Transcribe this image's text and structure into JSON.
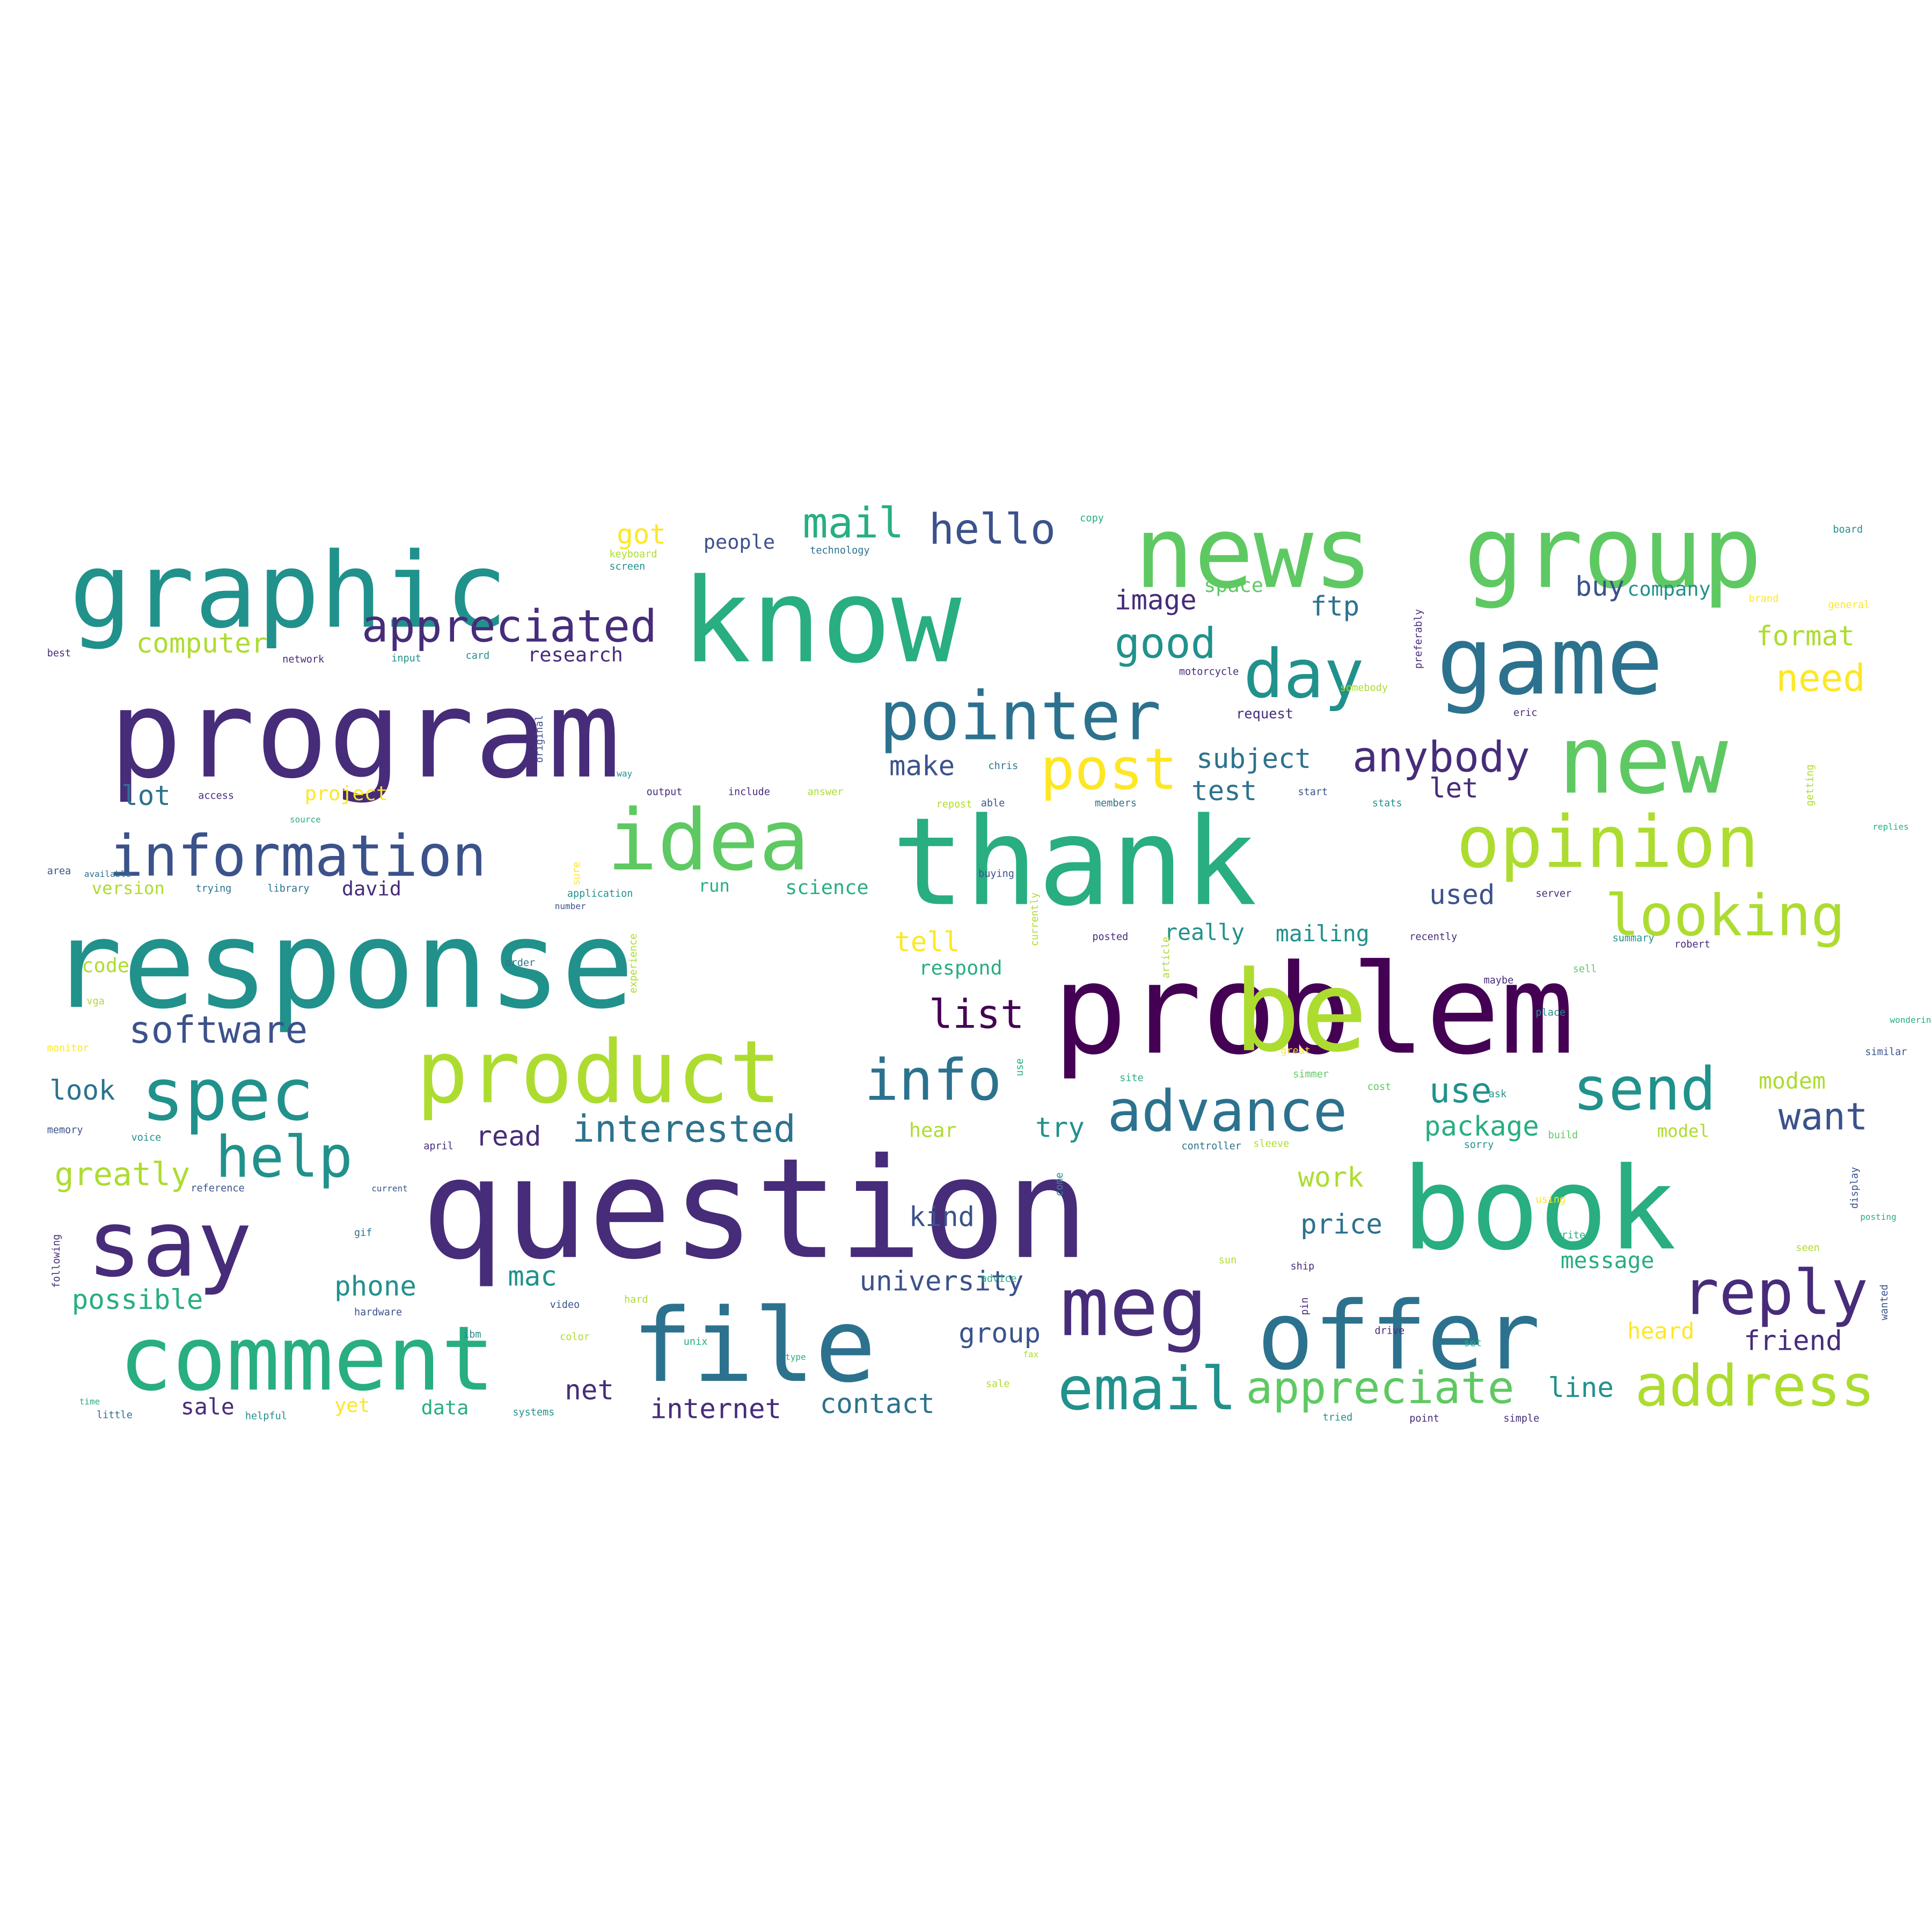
{
  "palette": {
    "dark_purple": "#440154",
    "indigo": "#472c7a",
    "blue": "#3b528b",
    "steel": "#2c728e",
    "teal": "#21918c",
    "green": "#28ae80",
    "light_green": "#5ec962",
    "lime": "#addc30",
    "yellow": "#fde725"
  },
  "words": [
    {
      "text": "question",
      "color": "indigo"
    },
    {
      "text": "problem",
      "color": "dark_purple"
    },
    {
      "text": "thank",
      "color": "green"
    },
    {
      "text": "program",
      "color": "indigo"
    },
    {
      "text": "response",
      "color": "teal"
    },
    {
      "text": "know",
      "color": "green"
    },
    {
      "text": "book",
      "color": "green"
    },
    {
      "text": "group",
      "color": "light_green"
    },
    {
      "text": "news",
      "color": "light_green"
    },
    {
      "text": "graphic",
      "color": "teal"
    },
    {
      "text": "game",
      "color": "steel"
    },
    {
      "text": "product",
      "color": "lime"
    },
    {
      "text": "offer",
      "color": "steel"
    },
    {
      "text": "file",
      "color": "steel"
    },
    {
      "text": "comment",
      "color": "green"
    },
    {
      "text": "idea",
      "color": "light_green"
    },
    {
      "text": "new",
      "color": "light_green"
    },
    {
      "text": "say",
      "color": "indigo"
    },
    {
      "text": "opinion",
      "color": "lime"
    },
    {
      "text": "pointer",
      "color": "steel"
    },
    {
      "text": "spec",
      "color": "teal"
    },
    {
      "text": "information",
      "color": "blue"
    },
    {
      "text": "meg",
      "color": "indigo"
    },
    {
      "text": "info",
      "color": "steel"
    },
    {
      "text": "day",
      "color": "teal"
    },
    {
      "text": "reply",
      "color": "indigo"
    },
    {
      "text": "address",
      "color": "lime"
    },
    {
      "text": "advance",
      "color": "steel"
    },
    {
      "text": "email",
      "color": "teal"
    },
    {
      "text": "looking",
      "color": "lime"
    },
    {
      "text": "post",
      "color": "yellow"
    },
    {
      "text": "help",
      "color": "teal"
    },
    {
      "text": "send",
      "color": "teal"
    },
    {
      "text": "appreciated",
      "color": "indigo"
    },
    {
      "text": "appreciate",
      "color": "light_green"
    },
    {
      "text": "software",
      "color": "blue"
    },
    {
      "text": "interested",
      "color": "steel"
    },
    {
      "text": "anybody",
      "color": "indigo"
    },
    {
      "text": "hello",
      "color": "blue"
    },
    {
      "text": "mail",
      "color": "green"
    },
    {
      "text": "good",
      "color": "teal"
    },
    {
      "text": "list",
      "color": "dark_purple"
    },
    {
      "text": "want",
      "color": "blue"
    },
    {
      "text": "use",
      "color": "teal"
    },
    {
      "text": "need",
      "color": "yellow"
    },
    {
      "text": "greatly",
      "color": "lime"
    },
    {
      "text": "computer",
      "color": "lime"
    },
    {
      "text": "internet",
      "color": "indigo"
    },
    {
      "text": "contact",
      "color": "steel"
    },
    {
      "text": "university",
      "color": "blue"
    },
    {
      "text": "group",
      "color": "blue"
    },
    {
      "text": "format",
      "color": "lime"
    },
    {
      "text": "subject",
      "color": "steel"
    },
    {
      "text": "test",
      "color": "steel"
    },
    {
      "text": "make",
      "color": "blue"
    },
    {
      "text": "let",
      "color": "indigo"
    },
    {
      "text": "lot",
      "color": "steel"
    },
    {
      "text": "look",
      "color": "steel"
    },
    {
      "text": "read",
      "color": "indigo"
    },
    {
      "text": "possible",
      "color": "green"
    },
    {
      "text": "phone",
      "color": "teal"
    },
    {
      "text": "mac",
      "color": "teal"
    },
    {
      "text": "net",
      "color": "indigo"
    },
    {
      "text": "sale",
      "color": "indigo"
    },
    {
      "text": "yet",
      "color": "yellow"
    },
    {
      "text": "data",
      "color": "green"
    },
    {
      "text": "line",
      "color": "teal"
    },
    {
      "text": "friend",
      "color": "indigo"
    },
    {
      "text": "heard",
      "color": "yellow"
    },
    {
      "text": "price",
      "color": "steel"
    },
    {
      "text": "work",
      "color": "lime"
    },
    {
      "text": "kind",
      "color": "blue"
    },
    {
      "text": "message",
      "color": "green"
    },
    {
      "text": "modem",
      "color": "lime"
    },
    {
      "text": "model",
      "color": "lime"
    },
    {
      "text": "package",
      "color": "green"
    },
    {
      "text": "used",
      "color": "blue"
    },
    {
      "text": "really",
      "color": "teal"
    },
    {
      "text": "mailing",
      "color": "teal"
    },
    {
      "text": "tell",
      "color": "yellow"
    },
    {
      "text": "respond",
      "color": "green"
    },
    {
      "text": "buy",
      "color": "blue"
    },
    {
      "text": "image",
      "color": "indigo"
    },
    {
      "text": "ftp",
      "color": "steel"
    },
    {
      "text": "got",
      "color": "yellow"
    },
    {
      "text": "people",
      "color": "blue"
    },
    {
      "text": "research",
      "color": "indigo"
    },
    {
      "text": "project",
      "color": "yellow"
    },
    {
      "text": "version",
      "color": "lime"
    },
    {
      "text": "david",
      "color": "indigo"
    },
    {
      "text": "run",
      "color": "green"
    },
    {
      "text": "science",
      "color": "green"
    },
    {
      "text": "code",
      "color": "lime"
    },
    {
      "text": "hear",
      "color": "lime"
    },
    {
      "text": "try",
      "color": "teal"
    },
    {
      "text": "space",
      "color": "light_green"
    },
    {
      "text": "company",
      "color": "teal"
    },
    {
      "text": "current",
      "color": "blue"
    },
    {
      "text": "number",
      "color": "blue"
    },
    {
      "text": "available",
      "color": "steel"
    },
    {
      "text": "source",
      "color": "green"
    },
    {
      "text": "replies",
      "color": "green"
    },
    {
      "text": "wondering",
      "color": "green"
    },
    {
      "text": "posting",
      "color": "green"
    },
    {
      "text": "type",
      "color": "green"
    },
    {
      "text": "fax",
      "color": "lime"
    },
    {
      "text": "time",
      "color": "green"
    },
    {
      "text": "way",
      "color": "teal"
    },
    {
      "text": "be",
      "color": "lime"
    }
  ],
  "small_words": [
    {
      "text": "technology",
      "color": "steel"
    },
    {
      "text": "card",
      "color": "teal"
    },
    {
      "text": "input",
      "color": "teal"
    },
    {
      "text": "network",
      "color": "indigo"
    },
    {
      "text": "best",
      "color": "indigo"
    },
    {
      "text": "motorcycle",
      "color": "indigo"
    },
    {
      "text": "request",
      "color": "indigo"
    },
    {
      "text": "output",
      "color": "indigo"
    },
    {
      "text": "include",
      "color": "indigo"
    },
    {
      "text": "answer",
      "color": "lime"
    },
    {
      "text": "able",
      "color": "blue"
    },
    {
      "text": "chris",
      "color": "steel"
    },
    {
      "text": "members",
      "color": "steel"
    },
    {
      "text": "start",
      "color": "blue"
    },
    {
      "text": "stats",
      "color": "teal"
    },
    {
      "text": "getting",
      "color": "lime"
    },
    {
      "text": "eric",
      "color": "indigo"
    },
    {
      "text": "somebody",
      "color": "lime"
    },
    {
      "text": "preferably",
      "color": "indigo"
    },
    {
      "text": "board",
      "color": "teal"
    },
    {
      "text": "brand",
      "color": "yellow"
    },
    {
      "text": "general",
      "color": "yellow"
    },
    {
      "text": "trying",
      "color": "steel"
    },
    {
      "text": "library",
      "color": "steel"
    },
    {
      "text": "application",
      "color": "teal"
    },
    {
      "text": "server",
      "color": "indigo"
    },
    {
      "text": "buying",
      "color": "blue"
    },
    {
      "text": "posted",
      "color": "indigo"
    },
    {
      "text": "recently",
      "color": "indigo"
    },
    {
      "text": "summary",
      "color": "teal"
    },
    {
      "text": "robert",
      "color": "indigo"
    },
    {
      "text": "maybe",
      "color": "indigo"
    },
    {
      "text": "sell",
      "color": "light_green"
    },
    {
      "text": "place",
      "color": "teal"
    },
    {
      "text": "similar",
      "color": "blue"
    },
    {
      "text": "great",
      "color": "yellow"
    },
    {
      "text": "simmer",
      "color": "light_green"
    },
    {
      "text": "cost",
      "color": "light_green"
    },
    {
      "text": "ask",
      "color": "teal"
    },
    {
      "text": "build",
      "color": "light_green"
    },
    {
      "text": "sorry",
      "color": "teal"
    },
    {
      "text": "controller",
      "color": "steel"
    },
    {
      "text": "sleeve",
      "color": "lime"
    },
    {
      "text": "monitor",
      "color": "yellow"
    },
    {
      "text": "memory",
      "color": "blue"
    },
    {
      "text": "voice",
      "color": "teal"
    },
    {
      "text": "april",
      "color": "indigo"
    },
    {
      "text": "reference",
      "color": "blue"
    },
    {
      "text": "hardware",
      "color": "blue"
    },
    {
      "text": "video",
      "color": "blue"
    },
    {
      "text": "color",
      "color": "lime"
    },
    {
      "text": "little",
      "color": "steel"
    },
    {
      "text": "helpful",
      "color": "teal"
    },
    {
      "text": "systems",
      "color": "teal"
    },
    {
      "text": "ship",
      "color": "indigo"
    },
    {
      "text": "point",
      "color": "indigo"
    },
    {
      "text": "simple",
      "color": "indigo"
    },
    {
      "text": "tried",
      "color": "teal"
    },
    {
      "text": "drive",
      "color": "indigo"
    },
    {
      "text": "set",
      "color": "green"
    },
    {
      "text": "sun",
      "color": "lime"
    },
    {
      "text": "using",
      "color": "yellow"
    },
    {
      "text": "vga",
      "color": "lime"
    },
    {
      "text": "order",
      "color": "steel"
    },
    {
      "text": "area",
      "color": "blue"
    },
    {
      "text": "gif",
      "color": "steel"
    },
    {
      "text": "site",
      "color": "green"
    },
    {
      "text": "wanted",
      "color": "blue"
    },
    {
      "text": "display",
      "color": "blue"
    },
    {
      "text": "following",
      "color": "indigo"
    },
    {
      "text": "currently",
      "color": "lime"
    },
    {
      "text": "experience",
      "color": "lime"
    },
    {
      "text": "article",
      "color": "lime"
    },
    {
      "text": "original",
      "color": "blue"
    },
    {
      "text": "keyboard",
      "color": "lime"
    },
    {
      "text": "screen",
      "color": "teal"
    },
    {
      "text": "come",
      "color": "teal"
    },
    {
      "text": "hard",
      "color": "lime"
    },
    {
      "text": "pin",
      "color": "indigo"
    },
    {
      "text": "advice",
      "color": "green"
    },
    {
      "text": "unix",
      "color": "green"
    },
    {
      "text": "seen",
      "color": "lime"
    },
    {
      "text": "write",
      "color": "green"
    },
    {
      "text": "copy",
      "color": "green"
    },
    {
      "text": "sure",
      "color": "yellow"
    },
    {
      "text": "access",
      "color": "indigo"
    },
    {
      "text": "repost",
      "color": "lime"
    },
    {
      "text": "ibm",
      "color": "teal"
    },
    {
      "text": "sale",
      "color": "lime"
    },
    {
      "text": "use",
      "color": "green"
    }
  ]
}
